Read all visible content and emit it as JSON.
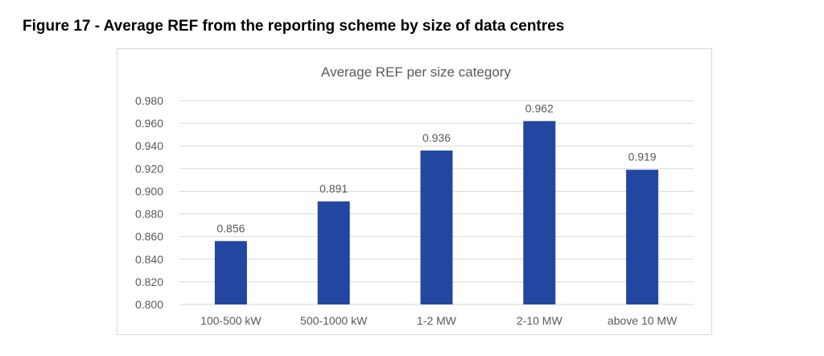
{
  "figure_caption": "Figure 17 - Average REF from the reporting scheme by size of data centres",
  "chart_data": {
    "type": "bar",
    "title": "Average REF per size category",
    "categories": [
      "100-500 kW",
      "500-1000 kW",
      "1-2 MW",
      "2-10 MW",
      "above 10 MW"
    ],
    "values": [
      0.856,
      0.891,
      0.936,
      0.962,
      0.919
    ],
    "data_labels": [
      "0.856",
      "0.891",
      "0.936",
      "0.962",
      "0.919"
    ],
    "ylim": [
      0.8,
      0.98
    ],
    "yticks": [
      "0.800",
      "0.820",
      "0.840",
      "0.860",
      "0.880",
      "0.900",
      "0.920",
      "0.940",
      "0.960",
      "0.980"
    ],
    "xlabel": "",
    "ylabel": "",
    "grid": true,
    "legend": "none",
    "bar_color": "#2346a0",
    "grid_color": "#d9d9d9"
  }
}
